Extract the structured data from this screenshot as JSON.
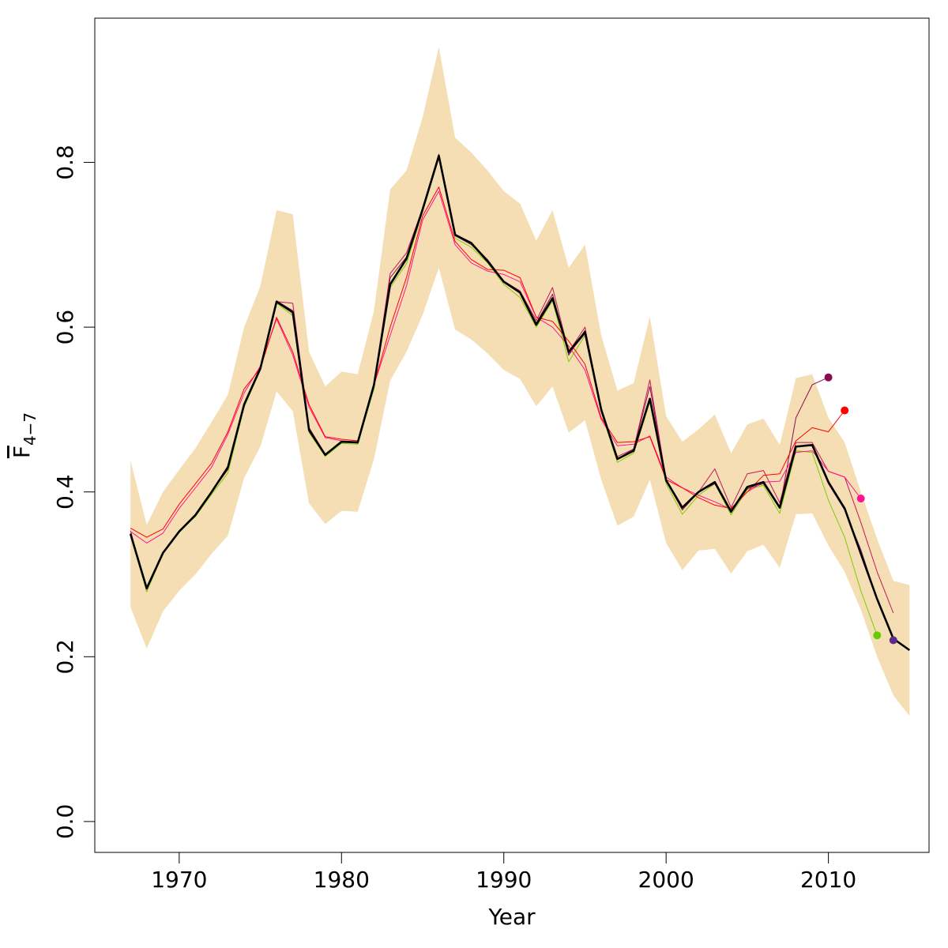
{
  "chart_data": {
    "type": "line",
    "xlabel": "Year",
    "ylabel": {
      "base": "F",
      "subscript": "4−7"
    },
    "xlim": [
      1964.8,
      2016.2
    ],
    "ylim": [
      -0.0375,
      0.975
    ],
    "x_ticks": [
      1970,
      1980,
      1990,
      2000,
      2010
    ],
    "x_tick_labels": [
      "1970",
      "1980",
      "1990",
      "2000",
      "2010"
    ],
    "y_ticks": [
      0.0,
      0.2,
      0.4,
      0.6,
      0.8
    ],
    "y_tick_labels": [
      "0.0",
      "0.2",
      "0.4",
      "0.6",
      "0.8"
    ],
    "grid": false,
    "legend": "none",
    "band": {
      "color": "#F5DEB3",
      "x": [
        1967,
        1968,
        1969,
        1970,
        1971,
        1972,
        1973,
        1974,
        1975,
        1976,
        1977,
        1978,
        1979,
        1980,
        1981,
        1982,
        1983,
        1984,
        1985,
        1986,
        1987,
        1988,
        1989,
        1990,
        1991,
        1992,
        1993,
        1994,
        1995,
        1996,
        1997,
        1998,
        1999,
        2000,
        2001,
        2002,
        2003,
        2004,
        2005,
        2006,
        2007,
        2008,
        2009,
        2010,
        2011,
        2012,
        2013,
        2014,
        2015
      ],
      "upper": [
        0.438,
        0.36,
        0.4,
        0.427,
        0.453,
        0.485,
        0.518,
        0.6,
        0.65,
        0.742,
        0.737,
        0.57,
        0.528,
        0.546,
        0.543,
        0.62,
        0.767,
        0.79,
        0.855,
        0.94,
        0.83,
        0.812,
        0.79,
        0.765,
        0.75,
        0.705,
        0.742,
        0.672,
        0.7,
        0.59,
        0.523,
        0.532,
        0.613,
        0.492,
        0.461,
        0.476,
        0.494,
        0.447,
        0.482,
        0.489,
        0.457,
        0.538,
        0.543,
        0.49,
        0.46,
        0.4,
        0.343,
        0.292,
        0.287
      ],
      "lower": [
        0.26,
        0.21,
        0.255,
        0.28,
        0.3,
        0.325,
        0.347,
        0.417,
        0.455,
        0.522,
        0.498,
        0.386,
        0.361,
        0.377,
        0.376,
        0.44,
        0.535,
        0.57,
        0.615,
        0.672,
        0.597,
        0.585,
        0.568,
        0.548,
        0.537,
        0.504,
        0.528,
        0.472,
        0.487,
        0.415,
        0.359,
        0.37,
        0.415,
        0.338,
        0.305,
        0.329,
        0.331,
        0.301,
        0.328,
        0.336,
        0.308,
        0.373,
        0.374,
        0.335,
        0.303,
        0.257,
        0.2,
        0.153,
        0.128
      ]
    },
    "series": [
      {
        "color": "#C2185B",
        "width": 1,
        "end_marker": false,
        "x": [
          1967,
          1968,
          1969,
          1970,
          1971,
          1972,
          1973,
          1974,
          1975,
          1976,
          1977,
          1978,
          1979,
          1980,
          1981,
          1982,
          1983,
          1984,
          1985,
          1986,
          1987,
          1988,
          1989,
          1990,
          1991,
          1992,
          1993,
          1994,
          1995,
          1996,
          1997,
          1998,
          1999,
          2000,
          2001,
          2002,
          2003,
          2004,
          2005,
          2006,
          2007,
          2008,
          2009,
          2010,
          2011,
          2012,
          2013,
          2014
        ],
        "y": [
          0.353,
          0.279,
          0.327,
          0.352,
          0.373,
          0.4,
          0.427,
          0.503,
          0.55,
          0.631,
          0.629,
          0.478,
          0.446,
          0.461,
          0.461,
          0.53,
          0.665,
          0.69,
          0.744,
          0.806,
          0.712,
          0.703,
          0.68,
          0.656,
          0.644,
          0.608,
          0.648,
          0.57,
          0.6,
          0.5,
          0.443,
          0.452,
          0.536,
          0.415,
          0.382,
          0.4,
          0.428,
          0.381,
          0.422,
          0.426,
          0.387,
          0.46,
          0.46,
          0.425,
          0.418,
          0.363,
          0.303,
          0.253
        ]
      },
      {
        "color": "#7CCD00",
        "width": 1,
        "end_marker": true,
        "marker_color": "#66CC00",
        "x": [
          1967,
          1968,
          1969,
          1970,
          1971,
          1972,
          1973,
          1974,
          1975,
          1976,
          1977,
          1978,
          1979,
          1980,
          1981,
          1982,
          1983,
          1984,
          1985,
          1986,
          1987,
          1988,
          1989,
          1990,
          1991,
          1992,
          1993,
          1994,
          1995,
          1996,
          1997,
          1998,
          1999,
          2000,
          2001,
          2002,
          2003,
          2004,
          2005,
          2006,
          2007,
          2008,
          2009,
          2010,
          2011,
          2012,
          2013
        ],
        "y": [
          0.347,
          0.279,
          0.325,
          0.352,
          0.37,
          0.397,
          0.423,
          0.503,
          0.548,
          0.629,
          0.614,
          0.472,
          0.443,
          0.459,
          0.458,
          0.525,
          0.648,
          0.677,
          0.74,
          0.805,
          0.708,
          0.697,
          0.678,
          0.652,
          0.636,
          0.6,
          0.632,
          0.558,
          0.59,
          0.497,
          0.436,
          0.447,
          0.509,
          0.41,
          0.373,
          0.396,
          0.41,
          0.372,
          0.403,
          0.408,
          0.374,
          0.45,
          0.448,
          0.39,
          0.345,
          0.28,
          0.226
        ]
      },
      {
        "color": "#7B2D8E",
        "width": 1,
        "end_marker": true,
        "marker_color": "#5B2C8A",
        "x": [
          1967,
          1968,
          1969,
          1970,
          1971,
          1972,
          1973,
          1974,
          1975,
          1976,
          1977,
          1978,
          1979,
          1980,
          1981,
          1982,
          1983,
          1984,
          1985,
          1986,
          1987,
          1988,
          1989,
          1990,
          1991,
          1992,
          1993,
          1994,
          1995,
          1996,
          1997,
          1998,
          1999,
          2000,
          2001,
          2002,
          2003,
          2004,
          2005,
          2006,
          2007,
          2008,
          2009,
          2010,
          2011,
          2012,
          2013,
          2014
        ],
        "y": [
          0.349,
          0.282,
          0.326,
          0.352,
          0.372,
          0.401,
          0.43,
          0.505,
          0.55,
          0.63,
          0.617,
          0.477,
          0.445,
          0.46,
          0.46,
          0.528,
          0.652,
          0.682,
          0.743,
          0.807,
          0.711,
          0.7,
          0.681,
          0.655,
          0.641,
          0.603,
          0.636,
          0.568,
          0.592,
          0.5,
          0.44,
          0.45,
          0.512,
          0.413,
          0.38,
          0.4,
          0.412,
          0.375,
          0.406,
          0.412,
          0.38,
          0.455,
          0.456,
          0.41,
          0.378,
          0.33,
          0.27,
          0.22
        ]
      },
      {
        "color": "#8B0A50",
        "width": 1,
        "end_marker": true,
        "marker_color": "#8B0A50",
        "x": [
          1967,
          1968,
          1969,
          1970,
          1971,
          1972,
          1973,
          1974,
          1975,
          1976,
          1977,
          1978,
          1979,
          1980,
          1981,
          1982,
          1983,
          1984,
          1985,
          1986,
          1987,
          1988,
          1989,
          1990,
          1991,
          1992,
          1993,
          1994,
          1995,
          1996,
          1997,
          1998,
          1999,
          2000,
          2001,
          2002,
          2003,
          2004,
          2005,
          2006,
          2007,
          2008,
          2009,
          2010
        ],
        "y": [
          0.35,
          0.283,
          0.326,
          0.353,
          0.371,
          0.4,
          0.428,
          0.505,
          0.55,
          0.632,
          0.62,
          0.478,
          0.445,
          0.461,
          0.46,
          0.528,
          0.66,
          0.685,
          0.745,
          0.81,
          0.713,
          0.702,
          0.682,
          0.656,
          0.643,
          0.605,
          0.64,
          0.566,
          0.596,
          0.5,
          0.44,
          0.452,
          0.528,
          0.414,
          0.378,
          0.4,
          0.41,
          0.375,
          0.404,
          0.41,
          0.38,
          0.49,
          0.53,
          0.539
        ]
      },
      {
        "color": "#FF1493",
        "width": 1,
        "end_marker": true,
        "marker_color": "#FF1493",
        "x": [
          1967,
          1968,
          1969,
          1970,
          1971,
          1972,
          1973,
          1974,
          1975,
          1976,
          1977,
          1978,
          1979,
          1980,
          1981,
          1982,
          1983,
          1984,
          1985,
          1986,
          1987,
          1988,
          1989,
          1990,
          1991,
          1992,
          1993,
          1994,
          1995,
          1996,
          1997,
          1998,
          1999,
          2000,
          2001,
          2002,
          2003,
          2004,
          2005,
          2006,
          2007,
          2008,
          2009,
          2010,
          2011,
          2012
        ],
        "y": [
          0.352,
          0.338,
          0.35,
          0.38,
          0.405,
          0.43,
          0.47,
          0.52,
          0.553,
          0.61,
          0.566,
          0.503,
          0.466,
          0.462,
          0.461,
          0.53,
          0.59,
          0.65,
          0.73,
          0.765,
          0.7,
          0.678,
          0.668,
          0.664,
          0.655,
          0.612,
          0.6,
          0.577,
          0.548,
          0.488,
          0.456,
          0.458,
          0.468,
          0.418,
          0.405,
          0.396,
          0.388,
          0.379,
          0.4,
          0.412,
          0.413,
          0.448,
          0.45,
          0.425,
          0.418,
          0.392
        ]
      },
      {
        "color": "#FF0000",
        "width": 1,
        "end_marker": true,
        "marker_color": "#FF0000",
        "x": [
          1967,
          1968,
          1969,
          1970,
          1971,
          1972,
          1973,
          1974,
          1975,
          1976,
          1977,
          1978,
          1979,
          1980,
          1981,
          1982,
          1983,
          1984,
          1985,
          1986,
          1987,
          1988,
          1989,
          1990,
          1991,
          1992,
          1993,
          1994,
          1995,
          1996,
          1997,
          1998,
          1999,
          2000,
          2001,
          2002,
          2003,
          2004,
          2005,
          2006,
          2007,
          2008,
          2009,
          2010,
          2011
        ],
        "y": [
          0.356,
          0.345,
          0.355,
          0.385,
          0.41,
          0.435,
          0.473,
          0.525,
          0.55,
          0.612,
          0.57,
          0.506,
          0.467,
          0.464,
          0.462,
          0.53,
          0.6,
          0.66,
          0.735,
          0.77,
          0.704,
          0.682,
          0.67,
          0.669,
          0.66,
          0.612,
          0.607,
          0.583,
          0.555,
          0.49,
          0.46,
          0.461,
          0.467,
          0.415,
          0.405,
          0.393,
          0.384,
          0.38,
          0.4,
          0.42,
          0.422,
          0.462,
          0.478,
          0.473,
          0.499
        ]
      },
      {
        "color": "#000000",
        "width": 2.6,
        "end_marker": false,
        "x": [
          1967,
          1968,
          1969,
          1970,
          1971,
          1972,
          1973,
          1974,
          1975,
          1976,
          1977,
          1978,
          1979,
          1980,
          1981,
          1982,
          1983,
          1984,
          1985,
          1986,
          1987,
          1988,
          1989,
          1990,
          1991,
          1992,
          1993,
          1994,
          1995,
          1996,
          1997,
          1998,
          1999,
          2000,
          2001,
          2002,
          2003,
          2004,
          2005,
          2006,
          2007,
          2008,
          2009,
          2010,
          2011,
          2012,
          2013,
          2014,
          2015
        ],
        "y": [
          0.349,
          0.283,
          0.326,
          0.352,
          0.372,
          0.4,
          0.43,
          0.506,
          0.55,
          0.631,
          0.618,
          0.475,
          0.445,
          0.461,
          0.46,
          0.53,
          0.652,
          0.683,
          0.743,
          0.808,
          0.712,
          0.702,
          0.68,
          0.655,
          0.642,
          0.603,
          0.635,
          0.57,
          0.594,
          0.5,
          0.44,
          0.45,
          0.513,
          0.414,
          0.381,
          0.4,
          0.412,
          0.376,
          0.406,
          0.412,
          0.381,
          0.455,
          0.457,
          0.412,
          0.38,
          0.325,
          0.27,
          0.222,
          0.208
        ]
      }
    ]
  }
}
